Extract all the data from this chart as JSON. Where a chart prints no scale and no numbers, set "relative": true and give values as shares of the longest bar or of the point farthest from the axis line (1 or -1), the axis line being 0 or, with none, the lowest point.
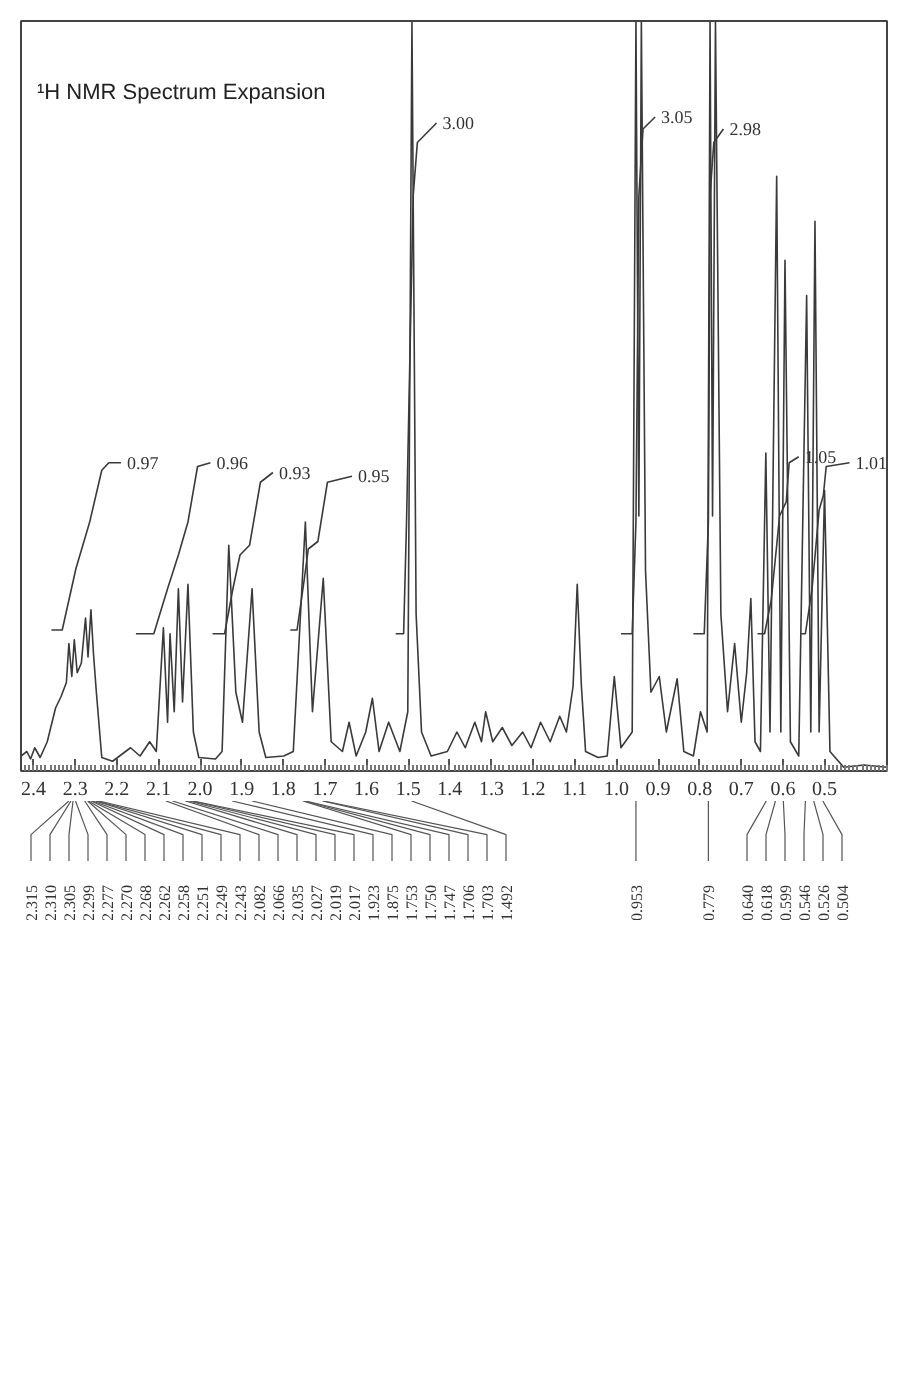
{
  "chart_data": {
    "type": "line",
    "title": "¹H NMR Spectrum Expansion",
    "relative": true,
    "xlim": [
      2.43,
      0.35
    ],
    "xticks": [
      2.4,
      2.3,
      2.2,
      2.1,
      {
        "value": 2.0,
        "label": "2.0"
      },
      1.9,
      1.8,
      1.7,
      1.6,
      1.5,
      1.4,
      1.3,
      1.2,
      1.1,
      {
        "value": 1.0,
        "label": "1.0"
      },
      0.9,
      0.8,
      0.7,
      0.6,
      0.5
    ],
    "series": [
      {
        "color": "#3a3a3a",
        "x": [
          2.43,
          2.416,
          2.407,
          2.397,
          2.384,
          2.367,
          2.347,
          2.334,
          2.321,
          2.315,
          2.308,
          2.302,
          2.295,
          2.285,
          2.275,
          2.269,
          2.262,
          2.256,
          2.249,
          2.236,
          2.21,
          2.167,
          2.144,
          2.121,
          2.105,
          2.088,
          2.078,
          2.072,
          2.062,
          2.052,
          2.042,
          2.029,
          2.016,
          2.003,
          1.963,
          1.947,
          1.931,
          1.914,
          1.898,
          1.875,
          1.858,
          1.842,
          1.799,
          1.776,
          1.747,
          1.73,
          1.704,
          1.685,
          1.658,
          1.642,
          1.625,
          1.602,
          1.586,
          1.57,
          1.547,
          1.52,
          1.501,
          1.491,
          1.481,
          1.468,
          1.445,
          1.406,
          1.383,
          1.363,
          1.34,
          1.324,
          1.314,
          1.297,
          1.274,
          1.251,
          1.225,
          1.205,
          1.182,
          1.159,
          1.136,
          1.12,
          1.104,
          1.094,
          1.084,
          1.074,
          1.044,
          1.022,
          1.005,
          0.989,
          0.962,
          0.953,
          0.946,
          0.94,
          0.93,
          0.917,
          0.897,
          0.88,
          0.854,
          0.838,
          0.815,
          0.798,
          0.782,
          0.775,
          0.769,
          0.762,
          0.749,
          0.733,
          0.716,
          0.7,
          0.687,
          0.677,
          0.667,
          0.654,
          0.641,
          0.631,
          0.615,
          0.605,
          0.595,
          0.582,
          0.562,
          0.543,
          0.533,
          0.523,
          0.513,
          0.5,
          0.487,
          0.454,
          0.405,
          0.35
        ],
        "values": [
          0.02,
          0.026,
          0.016,
          0.031,
          0.018,
          0.039,
          0.084,
          0.099,
          0.118,
          0.17,
          0.126,
          0.175,
          0.131,
          0.144,
          0.204,
          0.152,
          0.215,
          0.157,
          0.105,
          0.018,
          0.013,
          0.031,
          0.02,
          0.039,
          0.026,
          0.191,
          0.065,
          0.183,
          0.079,
          0.243,
          0.092,
          0.249,
          0.052,
          0.018,
          0.016,
          0.026,
          0.301,
          0.105,
          0.065,
          0.243,
          0.052,
          0.018,
          0.02,
          0.026,
          0.332,
          0.079,
          0.257,
          0.039,
          0.026,
          0.065,
          0.02,
          0.052,
          0.097,
          0.026,
          0.065,
          0.026,
          0.079,
          1.0,
          0.209,
          0.052,
          0.02,
          0.026,
          0.052,
          0.031,
          0.065,
          0.039,
          0.079,
          0.039,
          0.058,
          0.034,
          0.052,
          0.031,
          0.065,
          0.039,
          0.073,
          0.052,
          0.113,
          0.249,
          0.113,
          0.026,
          0.018,
          0.02,
          0.126,
          0.031,
          0.052,
          1.0,
          0.34,
          1.0,
          0.267,
          0.105,
          0.126,
          0.052,
          0.123,
          0.026,
          0.02,
          0.079,
          0.052,
          1.0,
          0.34,
          1.0,
          0.209,
          0.079,
          0.17,
          0.065,
          0.131,
          0.23,
          0.039,
          0.026,
          0.424,
          0.052,
          0.793,
          0.052,
          0.681,
          0.039,
          0.02,
          0.634,
          0.052,
          0.733,
          0.052,
          0.374,
          0.026,
          0.005,
          0.008,
          0.005
        ]
      },
      {
        "name": "0.97",
        "color": "#3a3a3a",
        "x": [
          2.357,
          2.331,
          2.298,
          2.265,
          2.236,
          2.219,
          2.19
        ],
        "values": [
          0.188,
          0.188,
          0.27,
          0.332,
          0.401,
          0.411,
          0.411
        ]
      },
      {
        "name": "0.96",
        "color": "#3a3a3a",
        "x": [
          2.154,
          2.111,
          2.078,
          2.052,
          2.029,
          2.006,
          1.975
        ],
        "values": [
          0.183,
          0.183,
          0.243,
          0.288,
          0.332,
          0.406,
          0.411
        ]
      },
      {
        "name": "0.93",
        "color": "#3a3a3a",
        "x": [
          1.97,
          1.941,
          1.921,
          1.904,
          1.881,
          1.855,
          1.825
        ],
        "values": [
          0.183,
          0.183,
          0.243,
          0.288,
          0.301,
          0.385,
          0.398
        ]
      },
      {
        "name": "0.95",
        "color": "#3a3a3a",
        "x": [
          1.783,
          1.767,
          1.75,
          1.74,
          1.717,
          1.694,
          1.635
        ],
        "values": [
          0.188,
          0.188,
          0.254,
          0.296,
          0.306,
          0.385,
          0.393
        ]
      },
      {
        "name": "3.00",
        "color": "#3a3a3a",
        "x": [
          1.53,
          1.511,
          1.504,
          1.488,
          1.478,
          1.432
        ],
        "values": [
          0.183,
          0.183,
          0.332,
          0.767,
          0.838,
          0.864
        ]
      },
      {
        "name": "3.05",
        "color": "#3a3a3a",
        "x": [
          0.989,
          0.962,
          0.953,
          0.946,
          0.936,
          0.907
        ],
        "values": [
          0.183,
          0.183,
          0.332,
          0.767,
          0.856,
          0.872
        ]
      },
      {
        "name": "2.98",
        "color": "#3a3a3a",
        "x": [
          0.815,
          0.789,
          0.779,
          0.775,
          0.766,
          0.743
        ],
        "values": [
          0.183,
          0.183,
          0.332,
          0.767,
          0.838,
          0.856
        ]
      },
      {
        "name": "1.05",
        "color": "#3a3a3a",
        "x": [
          0.661,
          0.644,
          0.628,
          0.608,
          0.592,
          0.585,
          0.562
        ],
        "values": [
          0.183,
          0.183,
          0.228,
          0.34,
          0.359,
          0.411,
          0.419
        ]
      },
      {
        "name": "1.01",
        "color": "#3a3a3a",
        "x": [
          0.556,
          0.546,
          0.53,
          0.513,
          0.503,
          0.496,
          0.44
        ],
        "values": [
          0.183,
          0.183,
          0.243,
          0.348,
          0.367,
          0.406,
          0.411
        ]
      }
    ],
    "annotations": [
      "2.315",
      "2.310",
      "2.305",
      "2.299",
      "2.277",
      "2.270",
      "2.268",
      "2.262",
      "2.258",
      "2.251",
      "2.249",
      "2.243",
      "2.082",
      "2.066",
      "2.035",
      "2.027",
      "2.019",
      "2.017",
      "1.923",
      "1.875",
      "1.753",
      "1.750",
      "1.747",
      "1.706",
      "1.703",
      "1.492",
      "0.953",
      "0.779",
      "0.640",
      "0.618",
      "0.599",
      "0.546",
      "0.526",
      "0.504"
    ]
  }
}
